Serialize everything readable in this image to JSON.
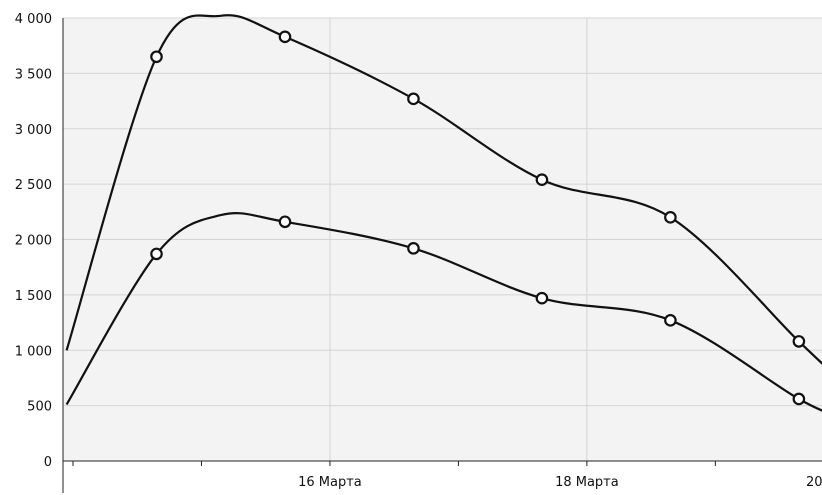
{
  "chart_data": {
    "type": "line",
    "y_ticks": [
      "4 000",
      "3 500",
      "3 000",
      "2 500",
      "2 000",
      "1 500",
      "1 000",
      "500",
      "0"
    ],
    "y_tick_values": [
      4000,
      3500,
      3000,
      2500,
      2000,
      1500,
      1000,
      500,
      0
    ],
    "ylim": [
      0,
      4000
    ],
    "x_tick_labels": [
      {
        "label": "16 Марта",
        "x": 16.0
      },
      {
        "label": "18 Марта",
        "x": 18.0
      },
      {
        "label": "20",
        "x": 20.0
      }
    ],
    "xlim": [
      14.0,
      20.0
    ],
    "grid": true,
    "colors": {
      "plot_background": "#f3f3f3",
      "line": "#111111",
      "grid": "#d4d4d4"
    },
    "series": [
      {
        "curve": [
          {
            "x": 13.95,
            "y": 1000
          },
          {
            "x": 14.65,
            "y": 3650
          },
          {
            "x": 15.15,
            "y": 4020
          },
          {
            "x": 15.65,
            "y": 3830
          },
          {
            "x": 16.65,
            "y": 3270
          },
          {
            "x": 17.65,
            "y": 2540
          },
          {
            "x": 18.65,
            "y": 2200
          },
          {
            "x": 19.65,
            "y": 1080
          },
          {
            "x": 20.0,
            "y": 700
          }
        ],
        "markers": [
          {
            "x": 14.65,
            "y": 3650
          },
          {
            "x": 15.65,
            "y": 3830
          },
          {
            "x": 16.65,
            "y": 3270
          },
          {
            "x": 17.65,
            "y": 2540
          },
          {
            "x": 18.65,
            "y": 2200
          },
          {
            "x": 19.65,
            "y": 1080
          }
        ]
      },
      {
        "curve": [
          {
            "x": 13.95,
            "y": 510
          },
          {
            "x": 14.65,
            "y": 1870
          },
          {
            "x": 15.15,
            "y": 2220
          },
          {
            "x": 15.65,
            "y": 2160
          },
          {
            "x": 16.65,
            "y": 1920
          },
          {
            "x": 17.65,
            "y": 1470
          },
          {
            "x": 18.65,
            "y": 1270
          },
          {
            "x": 19.65,
            "y": 560
          },
          {
            "x": 20.0,
            "y": 390
          }
        ],
        "markers": [
          {
            "x": 14.65,
            "y": 1870
          },
          {
            "x": 15.65,
            "y": 2160
          },
          {
            "x": 16.65,
            "y": 1920
          },
          {
            "x": 17.65,
            "y": 1470
          },
          {
            "x": 18.65,
            "y": 1270
          },
          {
            "x": 19.65,
            "y": 560
          }
        ]
      }
    ]
  }
}
